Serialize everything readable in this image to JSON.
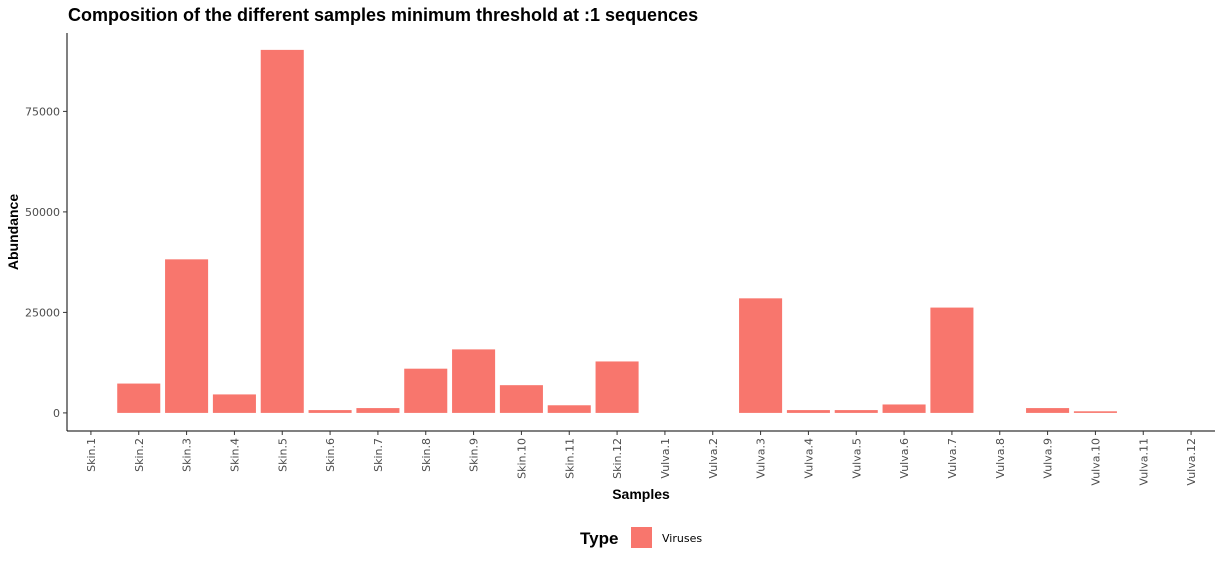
{
  "chart_data": {
    "type": "bar",
    "title": "Composition of the different samples minimum threshold at :1 sequences",
    "xlabel": "Samples",
    "ylabel": "Abundance",
    "categories": [
      "Skin.1",
      "Skin.2",
      "Skin.3",
      "Skin.4",
      "Skin.5",
      "Skin.6",
      "Skin.7",
      "Skin.8",
      "Skin.9",
      "Skin.10",
      "Skin.11",
      "Skin.12",
      "Vulva.1",
      "Vulva.2",
      "Vulva.3",
      "Vulva.4",
      "Vulva.5",
      "Vulva.6",
      "Vulva.7",
      "Vulva.8",
      "Vulva.9",
      "Vulva.10",
      "Vulva.11",
      "Vulva.12"
    ],
    "series": [
      {
        "name": "Viruses",
        "color": "#F8766D",
        "values": [
          0,
          7300,
          38200,
          4600,
          90300,
          700,
          1200,
          11000,
          15800,
          6900,
          1900,
          12800,
          0,
          0,
          28500,
          700,
          700,
          2100,
          26200,
          0,
          1200,
          400,
          0,
          0
        ]
      }
    ],
    "yticks": [
      0,
      25000,
      50000,
      75000
    ],
    "ylim": [
      -4500,
      94500
    ],
    "grid": false,
    "legend": {
      "title": "Type",
      "position": "bottom",
      "entries": [
        "Viruses"
      ]
    }
  }
}
